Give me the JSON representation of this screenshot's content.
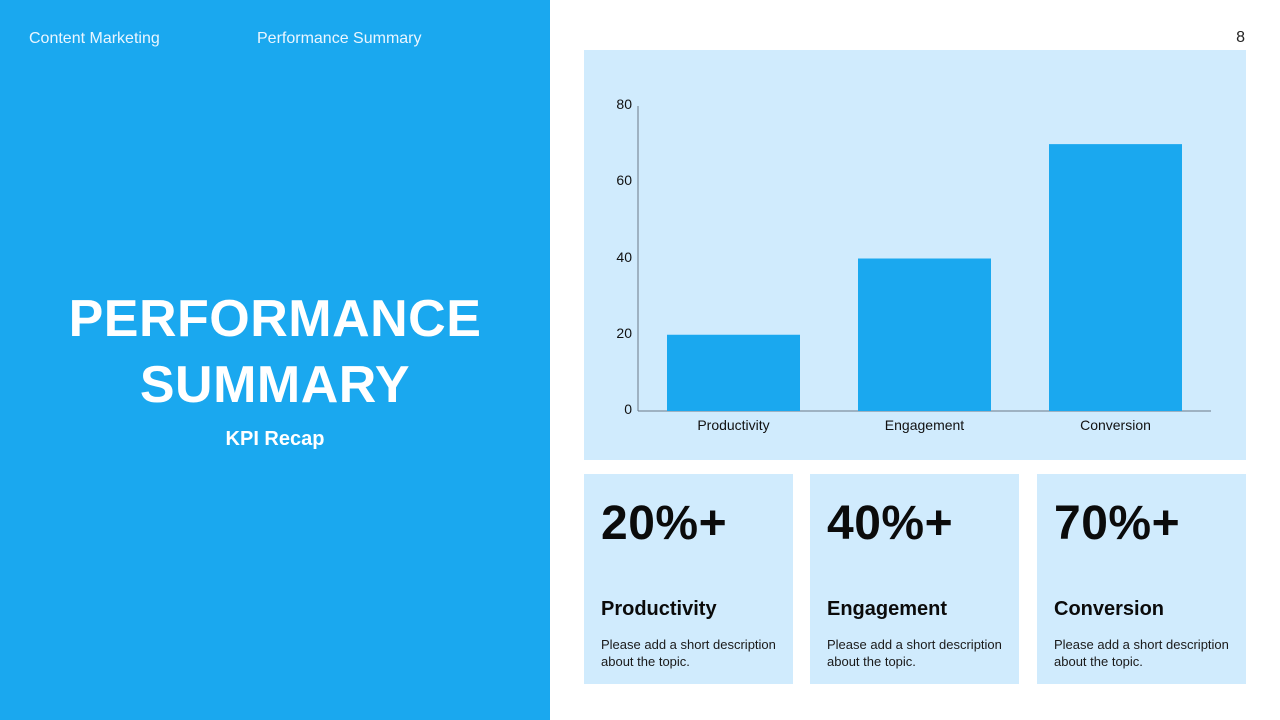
{
  "header": {
    "nav": [
      "Content Marketing",
      "Performance Summary"
    ],
    "page_number": "8"
  },
  "hero": {
    "title_line1": "PERFORMANCE",
    "title_line2": "SUMMARY",
    "subtitle": "KPI Recap"
  },
  "colors": {
    "accent": "#1aa8ef",
    "panel_bg": "#d0ebfd",
    "text_dark": "#0b0b0b"
  },
  "chart_data": {
    "type": "bar",
    "title": "",
    "xlabel": "",
    "ylabel": "",
    "categories": [
      "Productivity",
      "Engagement",
      "Conversion"
    ],
    "values": [
      20,
      40,
      70
    ],
    "y_ticks": [
      "0",
      "20",
      "40",
      "60",
      "80"
    ],
    "ylim": [
      0,
      80
    ],
    "grid": false,
    "legend": null,
    "bar_color": "#1aa8ef"
  },
  "kpis": [
    {
      "value": "20%+",
      "label": "Productivity",
      "description": "Please add a short description about the topic."
    },
    {
      "value": "40%+",
      "label": "Engagement",
      "description": "Please add a short description about the topic."
    },
    {
      "value": "70%+",
      "label": "Conversion",
      "description": "Please add a short description about the topic."
    }
  ]
}
